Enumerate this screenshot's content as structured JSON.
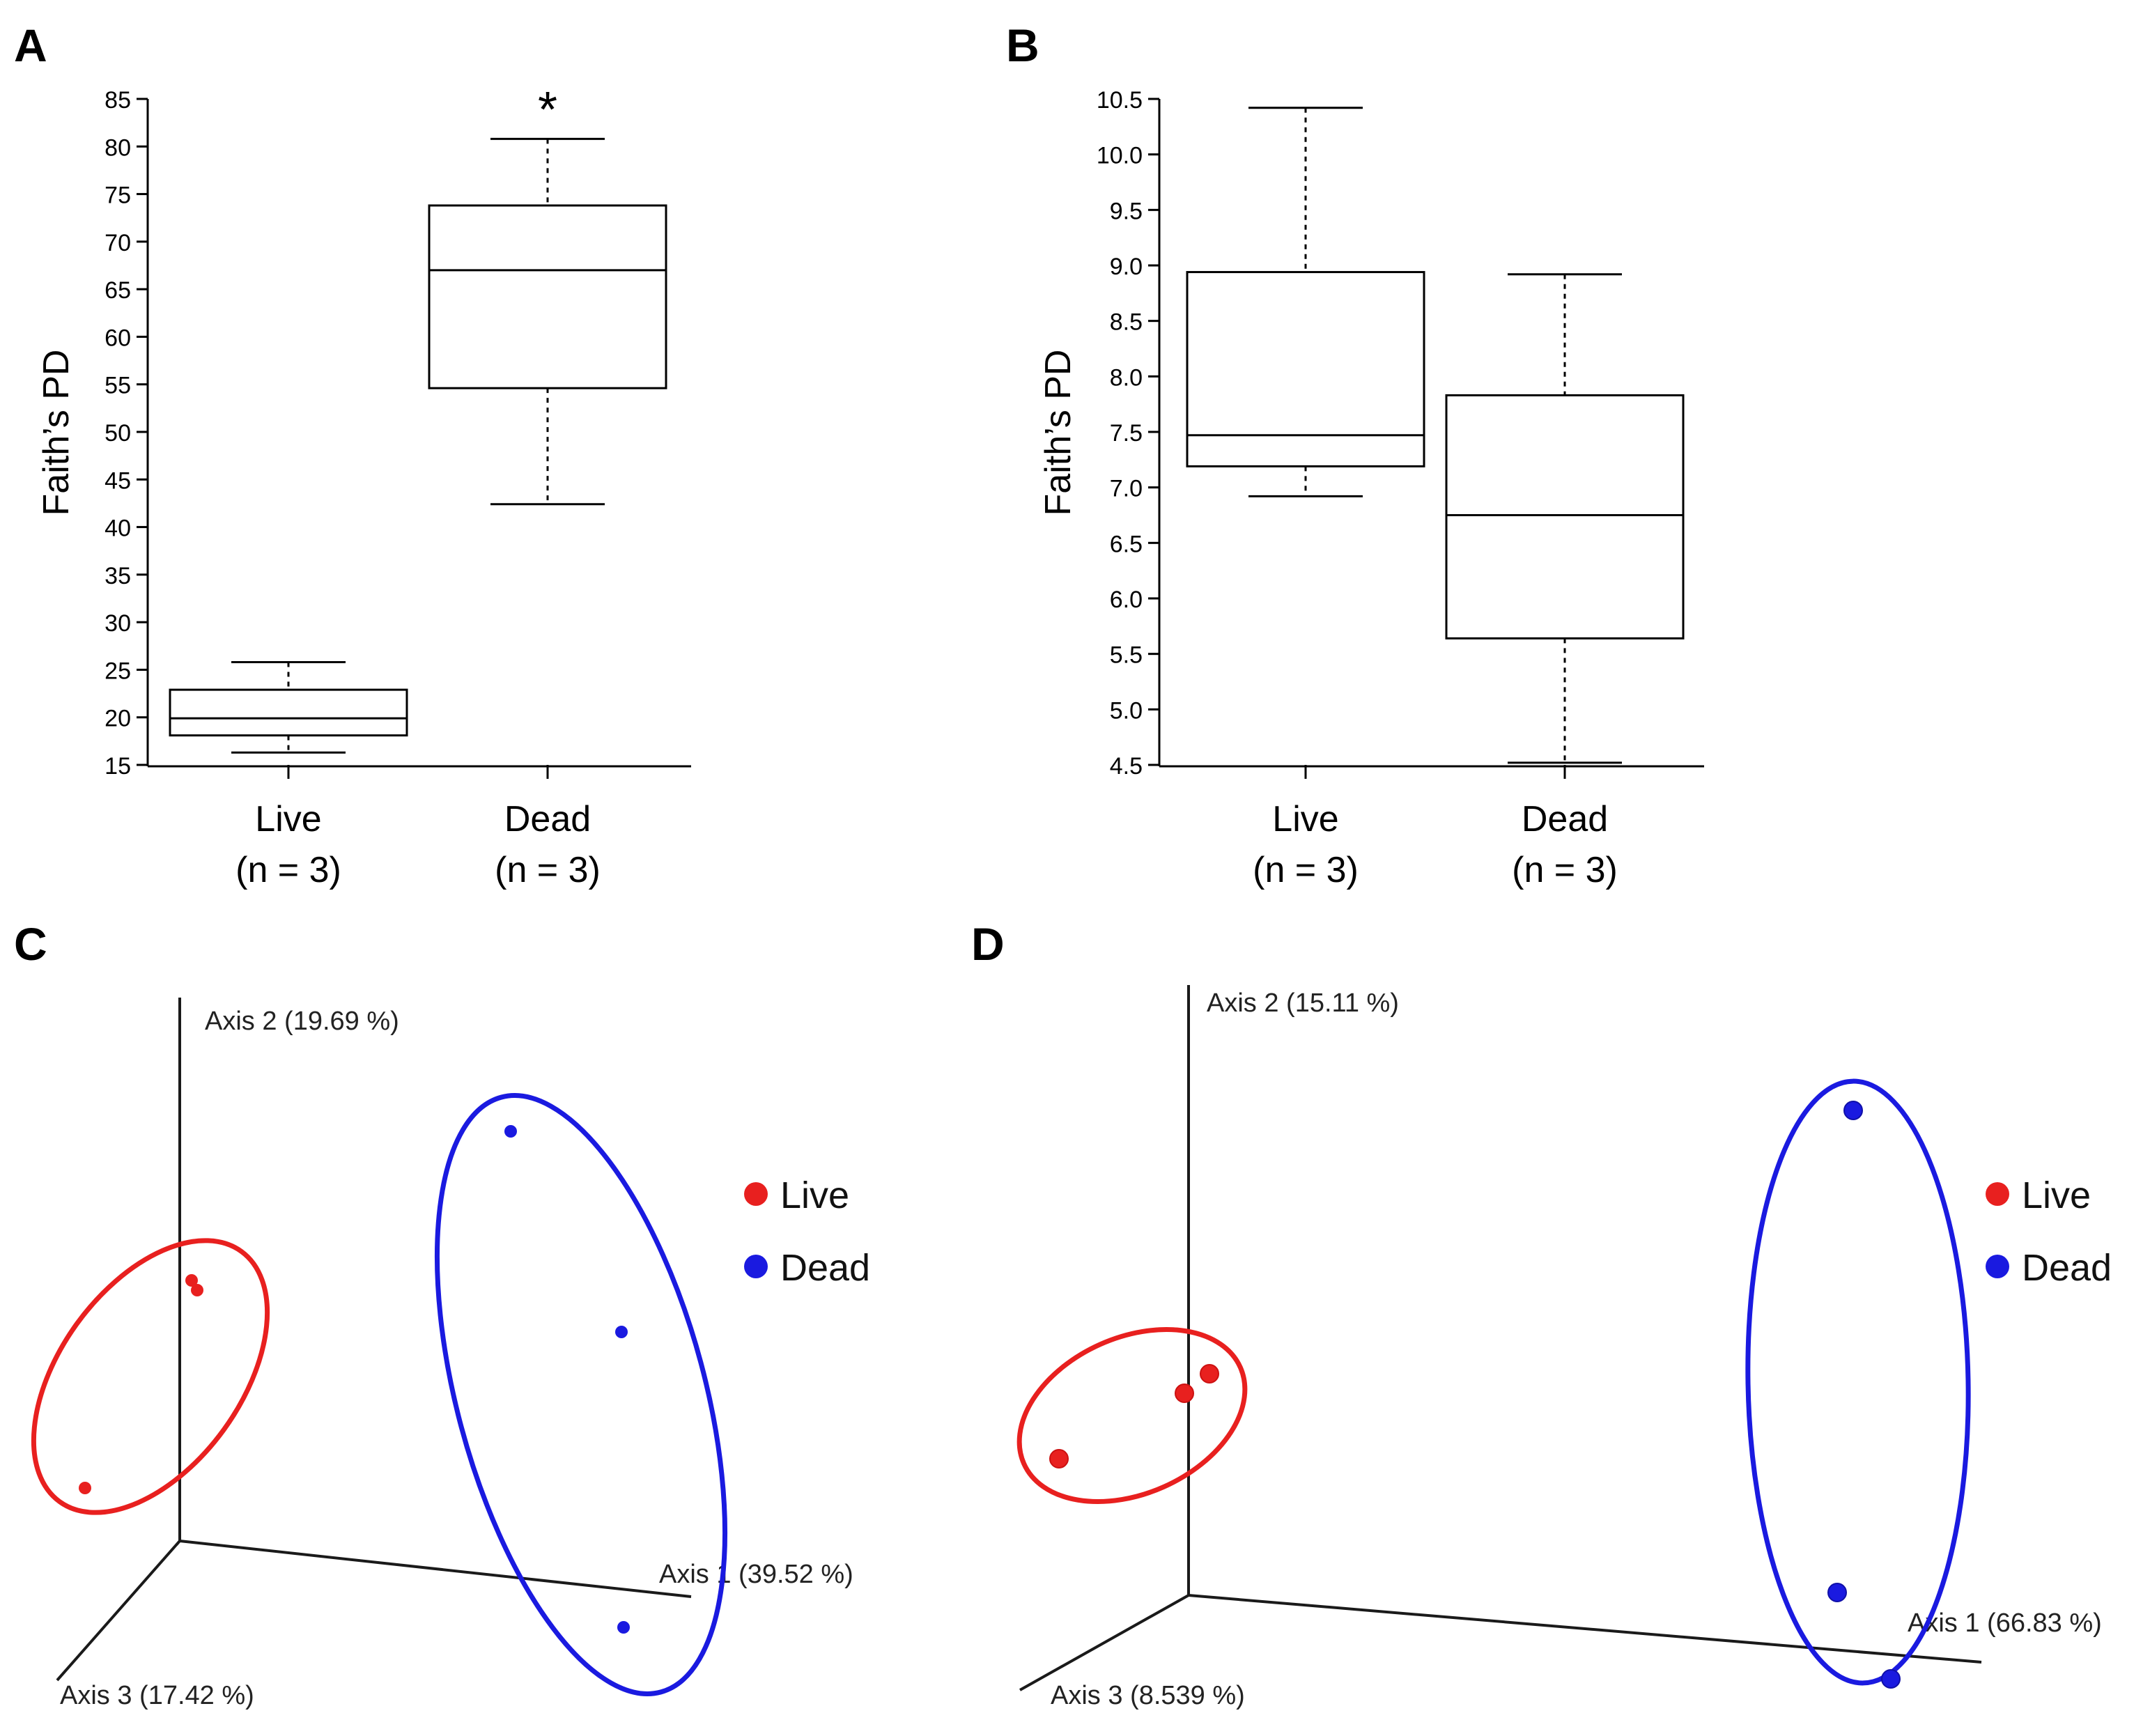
{
  "figure": {
    "panel_letters": [
      "A",
      "B",
      "C",
      "D"
    ]
  },
  "chart_data": [
    {
      "panel": "A",
      "type": "box",
      "ylabel": "Faith’s PD",
      "ylim": [
        15,
        85
      ],
      "yticks": [
        "15",
        "20",
        "25",
        "30",
        "35",
        "40",
        "45",
        "50",
        "55",
        "60",
        "65",
        "70",
        "75",
        "80",
        "85"
      ],
      "categories": [
        {
          "line1": "Live",
          "line2": "(n = 3)"
        },
        {
          "line1": "Dead",
          "line2": "(n = 3)"
        }
      ],
      "boxes": [
        {
          "min": 16.3,
          "q1": 18.1,
          "median": 19.9,
          "q3": 22.9,
          "max": 25.8
        },
        {
          "min": 42.4,
          "q1": 54.6,
          "median": 67.0,
          "q3": 73.8,
          "max": 80.8
        }
      ],
      "annotations": [
        {
          "category": 1,
          "text": "*"
        }
      ]
    },
    {
      "panel": "B",
      "type": "box",
      "ylabel": "Faith’s PD",
      "ylim": [
        4.5,
        10.5
      ],
      "yticks": [
        "4.5",
        "5.0",
        "5.5",
        "6.0",
        "6.5",
        "7.0",
        "7.5",
        "8.0",
        "8.5",
        "9.0",
        "9.5",
        "10.0",
        "10.5"
      ],
      "categories": [
        {
          "line1": "Live",
          "line2": "(n = 3)"
        },
        {
          "line1": "Dead",
          "line2": "(n = 3)"
        }
      ],
      "boxes": [
        {
          "min": 6.92,
          "q1": 7.19,
          "median": 7.47,
          "q3": 8.94,
          "max": 10.42
        },
        {
          "min": 4.52,
          "q1": 5.64,
          "median": 6.75,
          "q3": 7.83,
          "max": 8.92
        }
      ]
    },
    {
      "panel": "C",
      "type": "scatter",
      "axes": {
        "axis1": "Axis 1 (39.52 %)",
        "axis2": "Axis 2 (19.69 %)",
        "axis3": "Axis 3 (17.42 %)"
      },
      "legend": [
        {
          "name": "Live",
          "color": "#e8201f"
        },
        {
          "name": "Dead",
          "color": "#1a1ae0"
        }
      ],
      "series": [
        {
          "name": "Live",
          "color": "#e8201f",
          "points": 3
        },
        {
          "name": "Dead",
          "color": "#1a1ae0",
          "points": 3
        }
      ]
    },
    {
      "panel": "D",
      "type": "scatter",
      "axes": {
        "axis1": "Axis 1 (66.83 %)",
        "axis2": "Axis 2 (15.11 %)",
        "axis3": "Axis 3 (8.539 %)"
      },
      "legend": [
        {
          "name": "Live",
          "color": "#e8201f"
        },
        {
          "name": "Dead",
          "color": "#1a1ae0"
        }
      ],
      "series": [
        {
          "name": "Live",
          "color": "#e8201f",
          "points": 3
        },
        {
          "name": "Dead",
          "color": "#1a1ae0",
          "points": 3
        }
      ]
    }
  ]
}
